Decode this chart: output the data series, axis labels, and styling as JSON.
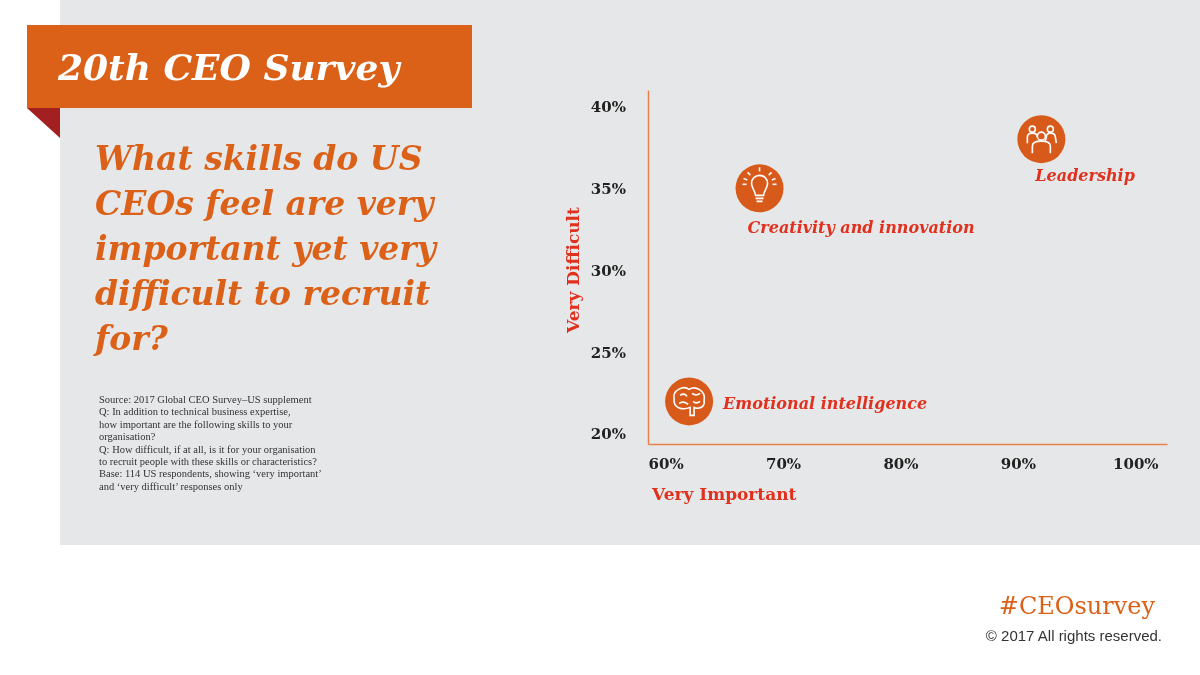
{
  "chart_data": {
    "type": "scatter",
    "title": "20th CEO Survey",
    "subtitle": "What skills do US CEOs feel are very important yet very difficult to recruit for?",
    "xlabel": "Very Important",
    "ylabel": "Very Difficult",
    "xlim": [
      58.5,
      102.7
    ],
    "ylim": [
      19.4,
      41
    ],
    "xticks": [
      {
        "value": 60,
        "label": "60%"
      },
      {
        "value": 70,
        "label": "70%"
      },
      {
        "value": 80,
        "label": "80%"
      },
      {
        "value": 90,
        "label": "90%"
      },
      {
        "value": 100,
        "label": "100%"
      }
    ],
    "yticks": [
      {
        "value": 20,
        "label": "20%"
      },
      {
        "value": 25,
        "label": "25%"
      },
      {
        "value": 30,
        "label": "30%"
      },
      {
        "value": 35,
        "label": "35%"
      },
      {
        "value": 40,
        "label": "40%"
      }
    ],
    "marker": "circle",
    "grid": false,
    "series": [
      {
        "name": "Emotional intelligence",
        "color": "#d85a1a",
        "x": [
          62
        ],
        "values": [
          22
        ]
      },
      {
        "name": "Creativity and innovation",
        "color": "#d85a1a",
        "x": [
          68
        ],
        "values": [
          35
        ]
      },
      {
        "name": "Leadership",
        "color": "#d85a1a",
        "x": [
          92
        ],
        "values": [
          38
        ]
      }
    ],
    "annotations": [
      "Source: 2017 Global CEO Survey–US supplement\nQ: In addition to technical business expertise,\nhow important are the following skills to your\norganisation?\nQ: How difficult, if at all, is it for your organisation\nto recruit people with these skills or characteristics?\nBase: 114 US respondents, showing ‘very important’\nand ‘very difficult’ responses only",
      "#CEOsurvey",
      "© 2017 All rights reserved."
    ]
  }
}
